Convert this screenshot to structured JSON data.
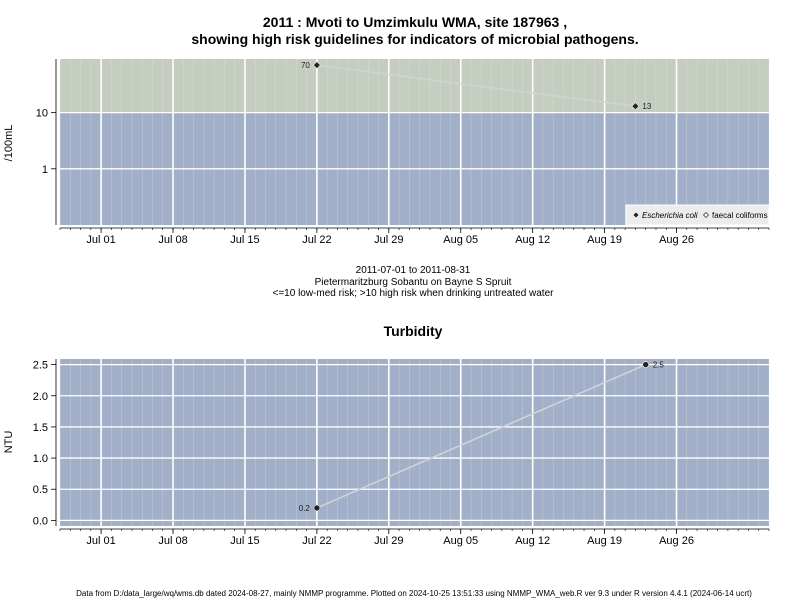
{
  "chart_data": [
    {
      "type": "line",
      "title_line1": "2011 : Mvoti to Umzimkulu WMA, site 187963 ,",
      "title_line2": "showing high risk guidelines for indicators of microbial pathogens.",
      "ylabel": "/100mL",
      "yscale": "log",
      "ylim": [
        0.1,
        90
      ],
      "y_ticks": [
        {
          "value": 1,
          "label": "1"
        },
        {
          "value": 10,
          "label": "10"
        }
      ],
      "xlim": [
        "2011-06-27",
        "2011-09-04"
      ],
      "x_ticks": [
        {
          "date": "2011-07-01",
          "label": "Jul 01"
        },
        {
          "date": "2011-07-08",
          "label": "Jul 08"
        },
        {
          "date": "2011-07-15",
          "label": "Jul 15"
        },
        {
          "date": "2011-07-22",
          "label": "Jul 22"
        },
        {
          "date": "2011-07-29",
          "label": "Jul 29"
        },
        {
          "date": "2011-08-05",
          "label": "Aug 05"
        },
        {
          "date": "2011-08-12",
          "label": "Aug 12"
        },
        {
          "date": "2011-08-19",
          "label": "Aug 19"
        },
        {
          "date": "2011-08-26",
          "label": "Aug 26"
        }
      ],
      "threshold": 10,
      "band_colors": {
        "high": "#c4cdc0",
        "low": "#a1b0c8"
      },
      "grid": true,
      "series": [
        {
          "name": "Escherichia coli",
          "marker": "filled-diamond",
          "color": "#cfd4d6",
          "points": [
            {
              "x": "2011-07-22",
              "y": 70,
              "label": "70"
            },
            {
              "x": "2011-08-22",
              "y": 13,
              "label": "13"
            }
          ]
        },
        {
          "name": "faecal coliforms",
          "marker": "open-diamond",
          "color": "#cfd4d6",
          "points": []
        }
      ],
      "legend_position": "bottom-right",
      "caption": [
        "2011-07-01 to 2011-08-31",
        "Pietermaritzburg Sobantu on Bayne S Spruit",
        "<=10 low-med risk; >10 high risk when drinking untreated water"
      ]
    },
    {
      "type": "line",
      "title": "Turbidity",
      "ylabel": "NTU",
      "ylim": [
        -0.09,
        2.59
      ],
      "y_ticks": [
        {
          "value": 0,
          "label": "0.0"
        },
        {
          "value": 0.5,
          "label": "0.5"
        },
        {
          "value": 1,
          "label": "1.0"
        },
        {
          "value": 1.5,
          "label": "1.5"
        },
        {
          "value": 2,
          "label": "2.0"
        },
        {
          "value": 2.5,
          "label": "2.5"
        }
      ],
      "xlim": [
        "2011-06-27",
        "2011-09-04"
      ],
      "x_ticks": [
        {
          "date": "2011-07-01",
          "label": "Jul 01"
        },
        {
          "date": "2011-07-08",
          "label": "Jul 08"
        },
        {
          "date": "2011-07-15",
          "label": "Jul 15"
        },
        {
          "date": "2011-07-22",
          "label": "Jul 22"
        },
        {
          "date": "2011-07-29",
          "label": "Jul 29"
        },
        {
          "date": "2011-08-05",
          "label": "Aug 05"
        },
        {
          "date": "2011-08-12",
          "label": "Aug 12"
        },
        {
          "date": "2011-08-19",
          "label": "Aug 19"
        },
        {
          "date": "2011-08-26",
          "label": "Aug 26"
        }
      ],
      "background_color": "#a1b0c8",
      "grid": true,
      "series": [
        {
          "name": "",
          "marker": "filled-circle",
          "color": "#cfd4d6",
          "points": [
            {
              "x": "2011-07-22",
              "y": 0.2,
              "label": "0.2"
            },
            {
              "x": "2011-08-23",
              "y": 2.5,
              "label": "2.5"
            }
          ]
        }
      ]
    }
  ],
  "footer": "Data from D:/data_large/wq/wms.db dated 2024-08-27, mainly NMMP programme. Plotted on 2024-10-25 13:51:33 using NMMP_WMA_web.R ver 9.3 under R version 4.4.1 (2024-06-14 ucrt)"
}
